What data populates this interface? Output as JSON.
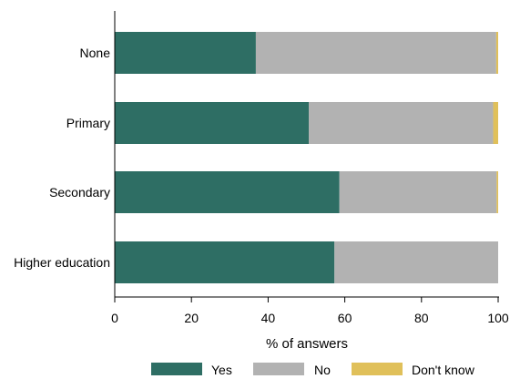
{
  "chart_data": {
    "type": "bar",
    "orientation": "horizontal",
    "stacked": true,
    "categories": [
      "None",
      "Primary",
      "Secondary",
      "Higher education"
    ],
    "series": [
      {
        "name": "Yes",
        "values": [
          36.8,
          50.6,
          58.6,
          57.3
        ],
        "color": "#2e6e64"
      },
      {
        "name": "No",
        "values": [
          62.7,
          48.1,
          41.0,
          42.7
        ],
        "color": "#b2b2b2"
      },
      {
        "name": "Don't know",
        "values": [
          0.5,
          1.3,
          0.4,
          0.0
        ],
        "color": "#e0c05a"
      }
    ],
    "xlabel": "% of answers",
    "ylabel": "",
    "xlim": [
      0,
      100
    ],
    "xticks": [
      0,
      20,
      40,
      60,
      80,
      100
    ],
    "grid": false,
    "legend_position": "bottom"
  }
}
